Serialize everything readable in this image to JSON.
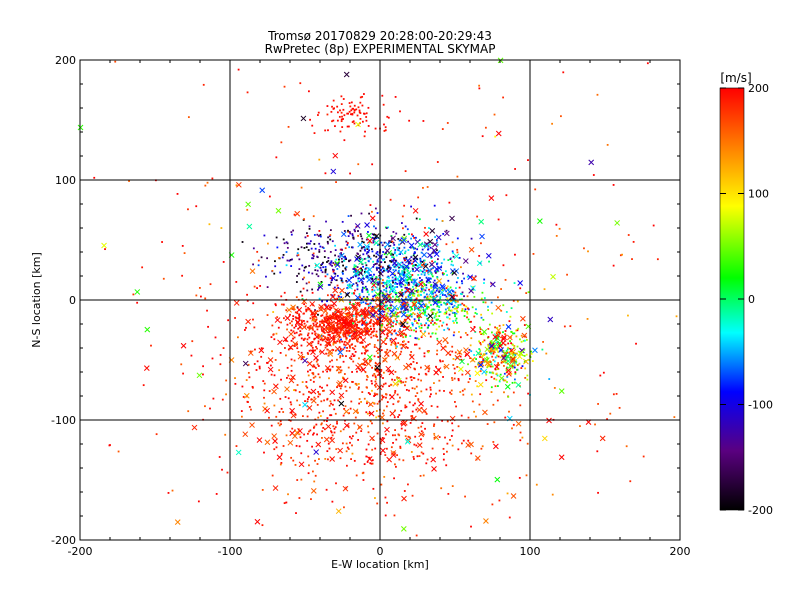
{
  "chart_data": {
    "type": "scatter",
    "title": "Tromsø 20170829 20:28:00-20:29:43",
    "subtitle": "RwPretec (8p) EXPERIMENTAL SKYMAP",
    "xlabel": "E-W location [km]",
    "ylabel": "N-S location [km]",
    "xlim": [
      -200,
      200
    ],
    "ylim": [
      -200,
      200
    ],
    "x_ticks": [
      -200,
      -100,
      0,
      100,
      200
    ],
    "y_ticks": [
      -200,
      -100,
      0,
      100,
      200
    ],
    "grid": true,
    "colorbar": {
      "label": "[m/s]",
      "range": [
        -200,
        200
      ],
      "ticks": [
        200,
        100,
        0,
        -100,
        -200
      ],
      "colors": [
        "#000000",
        "#5a0080",
        "#0000ff",
        "#00ffff",
        "#00ff00",
        "#ffff00",
        "#ff8000",
        "#ff0000"
      ]
    },
    "clusters": [
      {
        "name": "",
        "marker": "dot",
        "count": 900,
        "x": -10,
        "y": -70,
        "sx": 45,
        "sy": 45,
        "v_mean": 185,
        "v_spread": 25
      },
      {
        "name": "",
        "marker": "dot",
        "count": 550,
        "x": -25,
        "y": -20,
        "sx": 18,
        "sy": 10,
        "v_mean": 190,
        "v_spread": 15
      },
      {
        "name": "",
        "marker": "dot",
        "count": 650,
        "x": 15,
        "y": 15,
        "sx": 20,
        "sy": 20,
        "v_mean": -60,
        "v_spread": 40
      },
      {
        "name": "",
        "marker": "dot",
        "count": 350,
        "x": -20,
        "y": 35,
        "sx": 28,
        "sy": 14,
        "v_mean": -150,
        "v_spread": 45
      },
      {
        "name": "",
        "marker": "dot",
        "count": 300,
        "x": 30,
        "y": -5,
        "sx": 22,
        "sy": 12,
        "v_mean": 40,
        "v_spread": 50
      },
      {
        "name": "",
        "marker": "dot",
        "count": 250,
        "x": 80,
        "y": -45,
        "sx": 12,
        "sy": 12,
        "v_mean": 90,
        "v_spread": 90
      },
      {
        "name": "",
        "marker": "dot",
        "count": 90,
        "x": -20,
        "y": 155,
        "sx": 12,
        "sy": 8,
        "v_mean": 195,
        "v_spread": 5
      },
      {
        "name": "",
        "marker": "dot",
        "count": 320,
        "x": 0,
        "y": 0,
        "sx": 110,
        "sy": 110,
        "v_mean": 180,
        "v_spread": 30
      },
      {
        "name": "",
        "marker": "cross",
        "count": 180,
        "x": -10,
        "y": -70,
        "sx": 55,
        "sy": 50,
        "v_mean": 185,
        "v_spread": 25
      },
      {
        "name": "",
        "marker": "cross",
        "count": 110,
        "x": -25,
        "y": -20,
        "sx": 18,
        "sy": 10,
        "v_mean": 190,
        "v_spread": 15
      },
      {
        "name": "",
        "marker": "cross",
        "count": 130,
        "x": 15,
        "y": 20,
        "sx": 25,
        "sy": 22,
        "v_mean": -80,
        "v_spread": 60
      },
      {
        "name": "",
        "marker": "cross",
        "count": 60,
        "x": 80,
        "y": -45,
        "sx": 12,
        "sy": 12,
        "v_mean": 80,
        "v_spread": 100
      },
      {
        "name": "",
        "marker": "cross",
        "count": 70,
        "x": 0,
        "y": 0,
        "sx": 120,
        "sy": 120,
        "v_mean": 60,
        "v_spread": 150
      }
    ]
  }
}
